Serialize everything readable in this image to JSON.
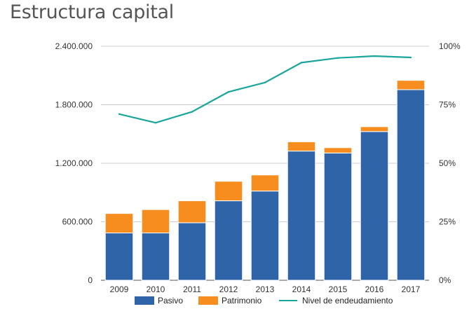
{
  "title": "Estructura capital",
  "chart_data": {
    "type": "bar",
    "stacked": true,
    "categories": [
      "2009",
      "2010",
      "2011",
      "2012",
      "2013",
      "2014",
      "2015",
      "2016",
      "2017"
    ],
    "series": [
      {
        "name": "Pasivo",
        "type": "bar",
        "axis": "left",
        "color": "#2f64a8",
        "values": [
          485000,
          485000,
          590000,
          815000,
          915000,
          1325000,
          1305000,
          1525000,
          1955000
        ]
      },
      {
        "name": "Patrimonio",
        "type": "bar",
        "axis": "left",
        "color": "#f68d1e",
        "values": [
          200000,
          240000,
          225000,
          200000,
          165000,
          95000,
          55000,
          50000,
          95000
        ]
      },
      {
        "name": "Nivel de endeudamiento",
        "type": "line",
        "axis": "right",
        "color": "#1aa69b",
        "values": [
          71,
          67.3,
          72,
          80.5,
          84.5,
          93,
          95,
          95.8,
          95.2
        ]
      }
    ],
    "y_left": {
      "min": 0,
      "max": 2400000,
      "ticks": [
        0,
        600000,
        1200000,
        1800000,
        2400000
      ],
      "tick_labels": [
        "0",
        "600.000",
        "1.200.000",
        "1.800.000",
        "2.400.000"
      ]
    },
    "y_right": {
      "min": 0,
      "max": 100,
      "ticks": [
        0,
        25,
        50,
        75,
        100
      ],
      "tick_labels": [
        "0%",
        "25%",
        "50%",
        "75%",
        "100%"
      ]
    },
    "grid": true,
    "legend_position": "bottom"
  }
}
